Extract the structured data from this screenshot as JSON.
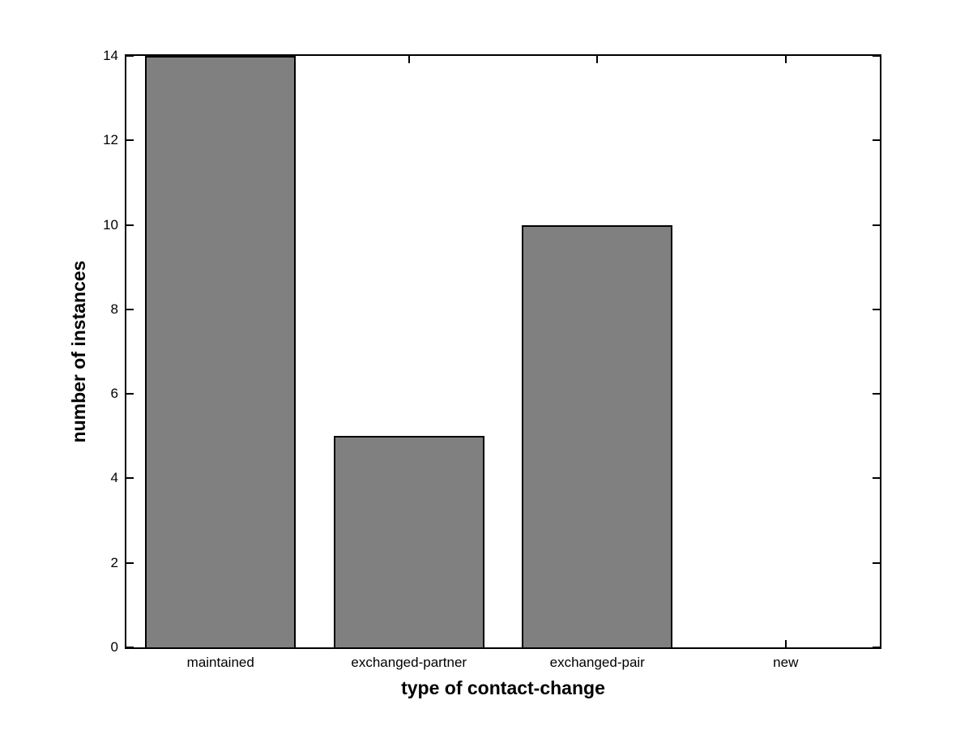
{
  "chart_data": {
    "type": "bar",
    "title": "",
    "xlabel": "type of contact-change",
    "ylabel": "number of instances",
    "categories": [
      "maintained",
      "exchanged-partner",
      "exchanged-pair",
      "new"
    ],
    "values": [
      14,
      5,
      10,
      0
    ],
    "ylim": [
      0,
      14
    ],
    "yticks": [
      0,
      2,
      4,
      6,
      8,
      10,
      12,
      14
    ],
    "bar_color": "#808080",
    "bar_edge_color": "#000000",
    "axis_color": "#000000",
    "background_color": "#ffffff",
    "grid": false,
    "legend": "none",
    "bar_width_fraction": 0.8,
    "tick_direction": "in",
    "box": true
  }
}
